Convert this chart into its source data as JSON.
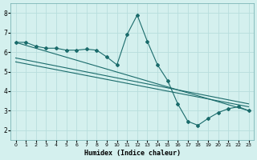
{
  "xlabel": "Humidex (Indice chaleur)",
  "bg_color": "#d4f0ee",
  "line_color": "#1a6b6b",
  "grid_color": "#b8dedd",
  "xlim": [
    -0.5,
    23.5
  ],
  "ylim": [
    1.5,
    8.5
  ],
  "yticks": [
    2,
    3,
    4,
    5,
    6,
    7,
    8
  ],
  "xticks": [
    0,
    1,
    2,
    3,
    4,
    5,
    6,
    7,
    8,
    9,
    10,
    11,
    12,
    13,
    14,
    15,
    16,
    17,
    18,
    19,
    20,
    21,
    22,
    23
  ],
  "lines": [
    {
      "x": [
        0,
        1,
        2,
        3,
        4,
        5,
        6,
        7,
        8,
        9,
        10,
        11,
        12,
        13,
        14,
        15,
        16,
        17,
        18,
        19,
        20,
        21,
        22,
        23
      ],
      "y": [
        6.5,
        6.5,
        6.3,
        6.2,
        6.2,
        6.1,
        6.1,
        6.15,
        6.1,
        5.75,
        5.35,
        6.9,
        7.9,
        6.55,
        5.35,
        4.55,
        3.35,
        2.45,
        2.25,
        2.6,
        2.9,
        3.1,
        3.2,
        3.0
      ]
    },
    {
      "x": [
        0,
        23
      ],
      "y": [
        6.5,
        3.0
      ]
    },
    {
      "x": [
        0,
        23
      ],
      "y": [
        5.7,
        3.35
      ]
    },
    {
      "x": [
        0,
        23
      ],
      "y": [
        5.5,
        3.2
      ]
    }
  ]
}
